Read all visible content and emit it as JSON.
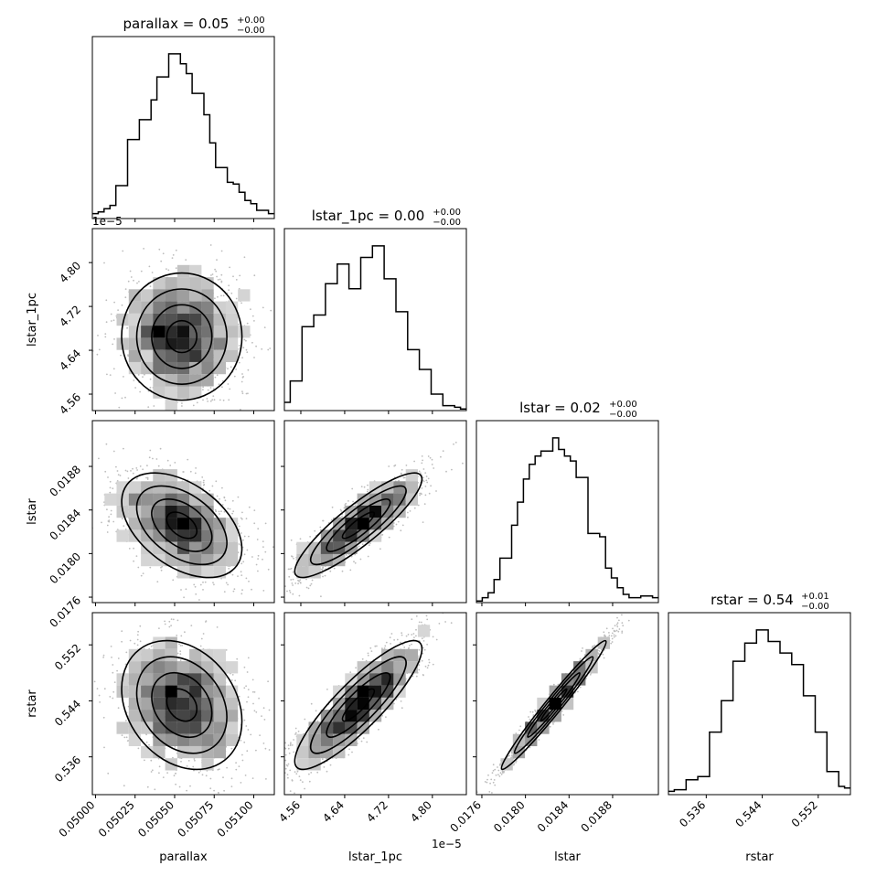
{
  "chart_data": {
    "type": "corner",
    "parameters": [
      {
        "name": "parallax",
        "axis_label": "parallax",
        "title_prefix": "parallax = ",
        "title_value": "0.05",
        "title_plus": "+0.00",
        "title_minus": "−0.00",
        "range": [
          0.04998,
          0.05113
        ],
        "ticks": [
          0.05,
          0.05025,
          0.0505,
          0.05075,
          0.051
        ],
        "tick_labels": [
          "0.05000",
          "0.05025",
          "0.05050",
          "0.05075",
          "0.05100"
        ],
        "hist": [
          0.03,
          0.04,
          0.06,
          0.08,
          0.2,
          0.2,
          0.48,
          0.48,
          0.6,
          0.6,
          0.72,
          0.86,
          0.86,
          1.0,
          1.0,
          0.94,
          0.88,
          0.76,
          0.76,
          0.63,
          0.46,
          0.31,
          0.31,
          0.22,
          0.21,
          0.16,
          0.11,
          0.09,
          0.05,
          0.05,
          0.03
        ]
      },
      {
        "name": "lstar_1pc",
        "axis_label": "lstar_1pc",
        "title_prefix": "lstar_1pc = ",
        "title_value": "0.00",
        "title_plus": "+0.00",
        "title_minus": "−0.00",
        "offset_label": "1e−5",
        "range": [
          4.53,
          4.862
        ],
        "ticks": [
          4.56,
          4.64,
          4.72,
          4.8
        ],
        "tick_labels": [
          "4.56",
          "4.64",
          "4.72",
          "4.80"
        ],
        "hist": [
          0.05,
          0.18,
          0.18,
          0.51,
          0.51,
          0.58,
          0.58,
          0.77,
          0.77,
          0.89,
          0.89,
          0.74,
          0.74,
          0.93,
          0.93,
          1.0,
          1.0,
          0.8,
          0.8,
          0.6,
          0.6,
          0.37,
          0.37,
          0.25,
          0.25,
          0.1,
          0.1,
          0.03,
          0.03,
          0.02,
          0.01
        ]
      },
      {
        "name": "lstar",
        "axis_label": "lstar",
        "title_prefix": "lstar = ",
        "title_value": "0.02",
        "title_plus": "+0.00",
        "title_minus": "−0.00",
        "range": [
          0.01755,
          0.01922
        ],
        "ticks": [
          0.0176,
          0.018,
          0.0184,
          0.0188
        ],
        "tick_labels": [
          "0.0176",
          "0.0180",
          "0.0184",
          "0.0188"
        ],
        "hist": [
          0.01,
          0.03,
          0.06,
          0.14,
          0.27,
          0.27,
          0.47,
          0.61,
          0.75,
          0.84,
          0.89,
          0.92,
          0.92,
          1.0,
          0.93,
          0.89,
          0.86,
          0.76,
          0.76,
          0.42,
          0.42,
          0.4,
          0.21,
          0.15,
          0.09,
          0.05,
          0.03,
          0.03,
          0.04,
          0.04,
          0.03
        ]
      },
      {
        "name": "rstar",
        "axis_label": "rstar",
        "title_prefix": "rstar = ",
        "title_value": "0.54",
        "title_plus": "+0.01",
        "title_minus": "−0.00",
        "range": [
          0.5306,
          0.5566
        ],
        "ticks": [
          0.536,
          0.544,
          0.552
        ],
        "tick_labels": [
          "0.536",
          "0.544",
          "0.552"
        ],
        "hist": [
          0.02,
          0.03,
          0.03,
          0.09,
          0.09,
          0.11,
          0.11,
          0.38,
          0.38,
          0.57,
          0.57,
          0.81,
          0.81,
          0.92,
          0.92,
          1.0,
          1.0,
          0.93,
          0.93,
          0.86,
          0.86,
          0.79,
          0.79,
          0.6,
          0.6,
          0.38,
          0.38,
          0.14,
          0.14,
          0.05,
          0.04
        ]
      }
    ],
    "pairs": [
      {
        "x": "parallax",
        "y": "lstar_1pc",
        "mean": [
          0.050545,
          4.665
        ],
        "sd": [
          0.00019,
          0.058
        ],
        "rho": 0.0
      },
      {
        "x": "parallax",
        "y": "lstar",
        "mean": [
          0.050545,
          0.01826
        ],
        "sd": [
          0.00019,
          0.00024
        ],
        "rho": -0.45
      },
      {
        "x": "lstar_1pc",
        "y": "lstar",
        "mean": [
          4.665,
          0.01826
        ],
        "sd": [
          0.058,
          0.00024
        ],
        "rho": 0.88
      },
      {
        "x": "parallax",
        "y": "rstar",
        "mean": [
          0.050545,
          0.5434
        ],
        "sd": [
          0.00019,
          0.0046
        ],
        "rho": -0.25
      },
      {
        "x": "lstar_1pc",
        "y": "rstar",
        "mean": [
          4.665,
          0.5434
        ],
        "sd": [
          0.058,
          0.0046
        ],
        "rho": 0.87
      },
      {
        "x": "lstar",
        "y": "rstar",
        "mean": [
          0.01826,
          0.5434
        ],
        "sd": [
          0.00024,
          0.0046
        ],
        "rho": 0.98
      }
    ],
    "bottom_offset_label": "1e−5"
  }
}
